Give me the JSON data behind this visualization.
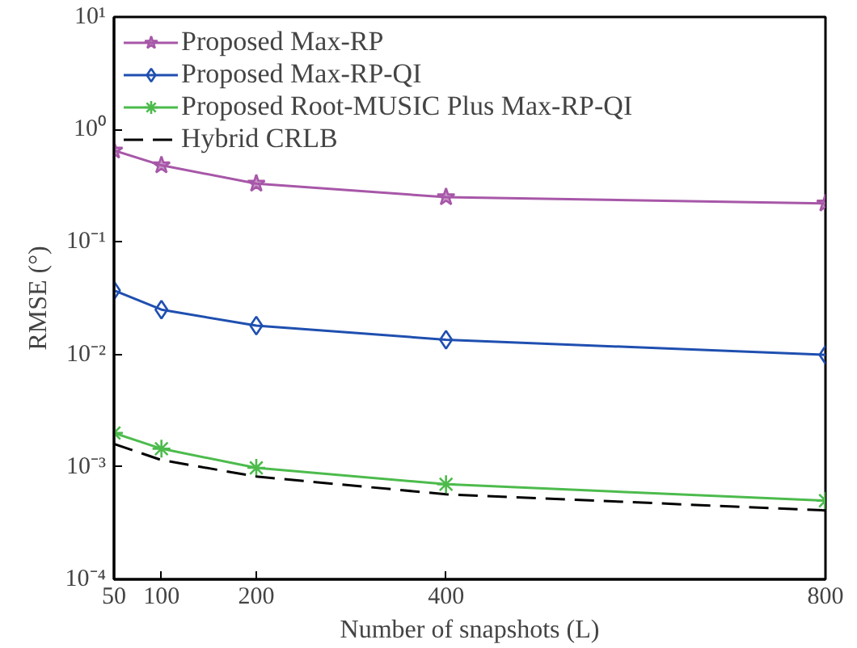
{
  "chart_data": {
    "type": "line",
    "xlabel": "Number of snapshots (L)",
    "ylabel": "RMSE (°)",
    "log": "y",
    "grid": false,
    "legend": "top left",
    "x": [
      50,
      100,
      200,
      400,
      800
    ],
    "xlim": [
      50,
      800
    ],
    "xticks": [
      50,
      100,
      200,
      400,
      800
    ],
    "ylim": [
      0.0001,
      10
    ],
    "yticks": [
      {
        "value": 0.0001,
        "label": "10⁻⁴"
      },
      {
        "value": 0.001,
        "label": "10⁻³"
      },
      {
        "value": 0.01,
        "label": "10⁻²"
      },
      {
        "value": 0.1,
        "label": "10⁻¹"
      },
      {
        "value": 1,
        "label": "10⁰"
      },
      {
        "value": 10,
        "label": "10¹"
      }
    ],
    "series": [
      {
        "name": "Proposed Max-RP",
        "color": "#a757a8",
        "marker": "star",
        "line_style": "solid",
        "values": [
          0.65,
          0.48,
          0.33,
          0.25,
          0.22
        ]
      },
      {
        "name": "Proposed Max-RP-QI",
        "color": "#1f4fb0",
        "marker": "diamond",
        "line_style": "solid",
        "values": [
          0.037,
          0.025,
          0.018,
          0.0135,
          0.0099
        ]
      },
      {
        "name": "Proposed Root-MUSIC Plus Max-RP-QI",
        "color": "#4cbb4c",
        "marker": "cross",
        "line_style": "solid",
        "values": [
          0.002,
          0.00145,
          0.00098,
          0.0007,
          0.0005
        ]
      },
      {
        "name": "Hybrid CRLB",
        "color": "#000000",
        "marker": "none",
        "line_style": "dashed",
        "values": [
          0.0016,
          0.00115,
          0.00082,
          0.00057,
          0.00041
        ]
      }
    ]
  }
}
